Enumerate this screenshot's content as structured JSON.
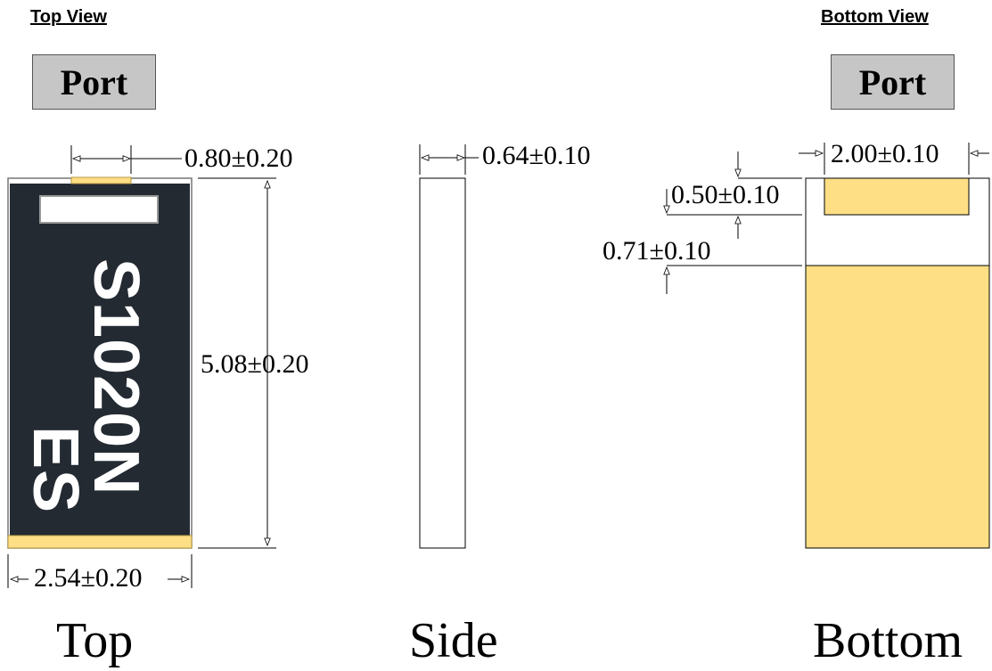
{
  "headings": {
    "top_view": "Top View",
    "bottom_view": "Bottom View"
  },
  "port_labels": {
    "top": "Port",
    "bottom": "Port"
  },
  "marking": {
    "line1": "S1020N",
    "line2": "ES"
  },
  "dimensions": {
    "top_pad_width": "0.80±0.20",
    "package_length": "5.08±0.20",
    "package_width": "2.54±0.20",
    "package_thickness": "0.64±0.10",
    "bottom_pad_width": "2.00±0.10",
    "small_pad_length": "0.50±0.10",
    "pad_gap": "0.71±0.10"
  },
  "captions": {
    "top": "Top",
    "side": "Side",
    "bottom": "Bottom"
  },
  "colors": {
    "body": "#232a32",
    "pad": "#fedf85",
    "port_box": "#c6c6c6",
    "marking_text": "#ffffff",
    "line": "#000000"
  }
}
